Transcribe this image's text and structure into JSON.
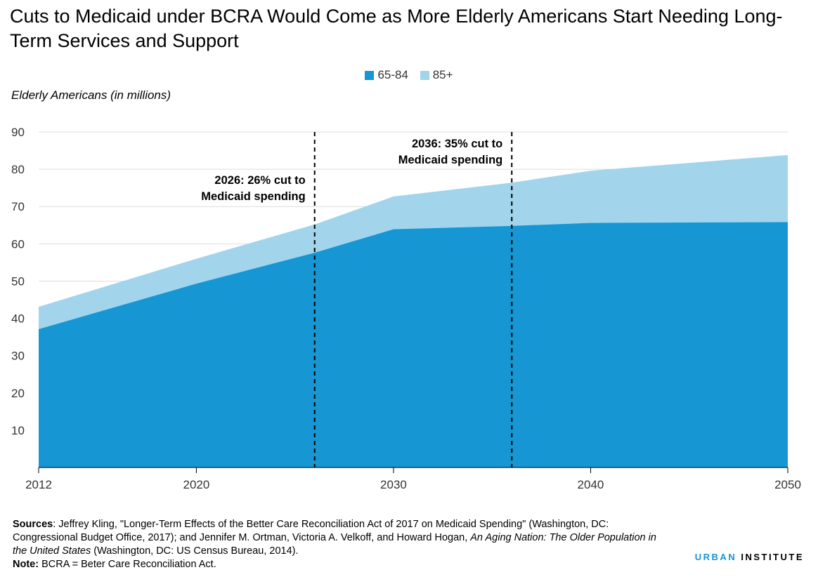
{
  "title": "Cuts to Medicaid under BCRA Would Come as More Elderly Americans Start Needing Long-Term Services and Support",
  "chart_data": {
    "type": "area",
    "stacked": true,
    "ylabel": "Elderly Americans (in millions)",
    "xlabel": "",
    "x": [
      2012,
      2020,
      2026,
      2030,
      2036,
      2040,
      2050
    ],
    "xticks": [
      2012,
      2020,
      2030,
      2040,
      2050
    ],
    "yticks": [
      10,
      20,
      30,
      40,
      50,
      60,
      70,
      80,
      90
    ],
    "ylim": [
      0,
      90
    ],
    "xlim": [
      2012,
      2050
    ],
    "grid": true,
    "legend_position": "top-center",
    "series": [
      {
        "name": "65-84",
        "color": "#1696d2",
        "values": [
          37.1,
          49.3,
          57.6,
          63.9,
          64.8,
          65.6,
          65.8
        ]
      },
      {
        "name": "85+",
        "color": "#a2d4ec",
        "values": [
          6.0,
          6.7,
          7.6,
          8.8,
          11.6,
          14.0,
          18.0
        ]
      }
    ],
    "annotations": [
      {
        "x": 2026,
        "line1": "2026: 26% cut to",
        "line2": "Medicaid spending",
        "align": "left"
      },
      {
        "x": 2036,
        "line1": "2036: 35% cut to",
        "line2": "Medicaid spending",
        "align": "left"
      }
    ]
  },
  "footer": {
    "sources_label": "Sources",
    "sources_text_1": ": Jeffrey Kling, \"Longer-Term Effects of the Better Care Reconciliation Act of 2017 on Medicaid Spending\" (Washington, DC: Congressional Budget Office, 2017); and Jennifer M. Ortman, Victoria A. Velkoff, and Howard Hogan, ",
    "sources_italic": "An Aging Nation: The Older Population in the United States",
    "sources_text_2": " (Washington, DC: US Census Bureau, 2014).",
    "note_label": "Note:",
    "note_text": " BCRA = Beter Care Reconciliation Act."
  },
  "brand": {
    "part1": "URBAN",
    "part2": " INSTITUTE"
  }
}
